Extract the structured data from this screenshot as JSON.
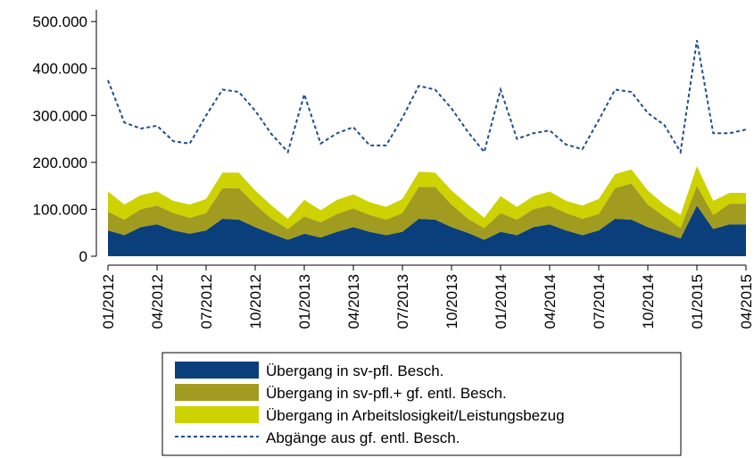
{
  "chart_data": {
    "type": "area",
    "categories": [
      "01/2012",
      null,
      null,
      "04/2012",
      null,
      null,
      "07/2012",
      null,
      null,
      "10/2012",
      null,
      null,
      "01/2013",
      null,
      null,
      "04/2013",
      null,
      null,
      "07/2013",
      null,
      null,
      "10/2013",
      null,
      null,
      "01/2014",
      null,
      null,
      "04/2014",
      null,
      null,
      "07/2014",
      null,
      null,
      "10/2014",
      null,
      null,
      "01/2015",
      null,
      null,
      "04/2015"
    ],
    "series": [
      {
        "name": "Übergang in sv-pfl. Besch.",
        "color": "#0b3f7c",
        "type": "area",
        "values": [
          55000,
          45000,
          62000,
          68000,
          55000,
          48000,
          55000,
          80000,
          78000,
          62000,
          48000,
          35000,
          48000,
          40000,
          52000,
          62000,
          52000,
          45000,
          52000,
          80000,
          78000,
          62000,
          50000,
          35000,
          52000,
          45000,
          62000,
          68000,
          55000,
          45000,
          55000,
          80000,
          78000,
          62000,
          50000,
          38000,
          108000,
          58000,
          68000,
          68000
        ]
      },
      {
        "name": "Übergang in sv-pfl.+ gf. entl. Besch.",
        "color": "#a19b20",
        "type": "area",
        "values": [
          40000,
          33000,
          38000,
          40000,
          37000,
          34000,
          37000,
          65000,
          67000,
          48000,
          32000,
          23000,
          37000,
          32000,
          38000,
          40000,
          36000,
          33000,
          40000,
          68000,
          70000,
          48000,
          30000,
          25000,
          40000,
          33000,
          38000,
          40000,
          37000,
          35000,
          35000,
          65000,
          77000,
          48000,
          35000,
          22000,
          42000,
          30000,
          44000,
          44000
        ]
      },
      {
        "name": "Übergang in Arbeitslosigkeit/Leistungsbezug",
        "color": "#cdd200",
        "type": "area",
        "values": [
          43000,
          32000,
          30000,
          30000,
          26000,
          28000,
          30000,
          33000,
          33000,
          30000,
          28000,
          22000,
          35000,
          26000,
          30000,
          30000,
          27000,
          27000,
          30000,
          32000,
          30000,
          30000,
          30000,
          22000,
          36000,
          27000,
          28000,
          30000,
          26000,
          28000,
          32000,
          30000,
          30000,
          30000,
          25000,
          28000,
          42000,
          30000,
          23000,
          23000
        ]
      },
      {
        "name": "Abgänge aus gf. entl. Besch.",
        "color": "#1f4f8f",
        "type": "line",
        "values": [
          375000,
          285000,
          272000,
          278000,
          245000,
          240000,
          300000,
          355000,
          350000,
          310000,
          260000,
          222000,
          345000,
          240000,
          262000,
          275000,
          236000,
          236000,
          295000,
          363000,
          355000,
          315000,
          265000,
          222000,
          355000,
          250000,
          262000,
          268000,
          238000,
          228000,
          290000,
          355000,
          350000,
          305000,
          280000,
          222000,
          460000,
          262000,
          262000,
          270000
        ]
      }
    ],
    "ylim": [
      0,
      525000
    ],
    "yticks": [
      0,
      {
        "value": 100000,
        "label": "100.000"
      },
      {
        "value": 200000,
        "label": "200.000"
      },
      {
        "value": 300000,
        "label": "300.000"
      },
      {
        "value": 400000,
        "label": "400.000"
      },
      {
        "value": 500000,
        "label": "500.000"
      }
    ],
    "grid": false
  }
}
